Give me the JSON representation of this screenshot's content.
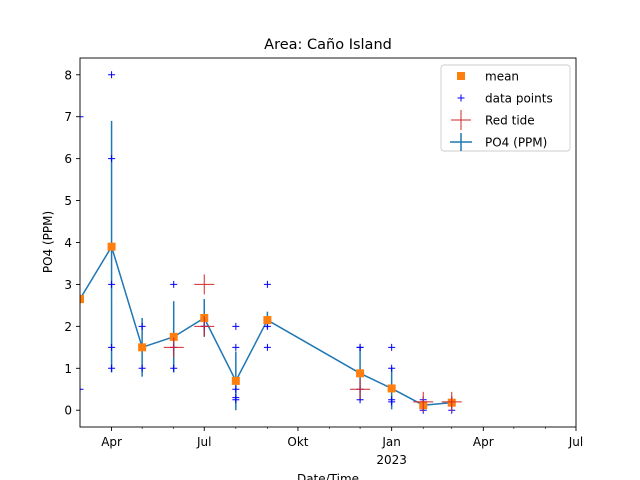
{
  "chart_data": {
    "type": "line",
    "title": "Area: Caño Island",
    "xlabel": "Date/Time",
    "ylabel": "PO4 (PPM)",
    "xlim": [
      "2022-03-01",
      "2023-07-01"
    ],
    "ylim": [
      -0.4,
      8.4
    ],
    "grid": false,
    "legend_placement": "top-right",
    "y_ticks": [
      0,
      1,
      2,
      3,
      4,
      5,
      6,
      7,
      8
    ],
    "x_major_ticks": [
      {
        "date": "2022-04-01",
        "label": "Apr",
        "sublabel": ""
      },
      {
        "date": "2022-07-01",
        "label": "Jul",
        "sublabel": ""
      },
      {
        "date": "2022-10-01",
        "label": "Okt",
        "sublabel": ""
      },
      {
        "date": "2023-01-01",
        "label": "Jan",
        "sublabel": "2023"
      },
      {
        "date": "2023-04-01",
        "label": "Apr",
        "sublabel": ""
      },
      {
        "date": "2023-07-01",
        "label": "Jul",
        "sublabel": ""
      }
    ],
    "x_minor_ticks": [
      "2022-05-01",
      "2022-06-01",
      "2022-08-01",
      "2022-09-01",
      "2022-11-01",
      "2022-12-01",
      "2023-02-01",
      "2023-03-01",
      "2023-05-01",
      "2023-06-01"
    ],
    "legend": [
      {
        "label": "mean",
        "marker": "square",
        "color": "#ff7f0e"
      },
      {
        "label": "data points",
        "marker": "plus",
        "color": "#0000ff"
      },
      {
        "label": "Red tide",
        "marker": "big-plus",
        "color": "#d62728"
      },
      {
        "label": "PO4 (PPM)",
        "marker": "errorbar-line",
        "color": "#1f77b4"
      }
    ],
    "series": [
      {
        "name": "PO4 (PPM)",
        "color": "#1f77b4",
        "points": [
          {
            "x": "2022-03-01",
            "y": 2.65,
            "err": 0.1
          },
          {
            "x": "2022-04-01",
            "y": 3.9,
            "err": 3.0
          },
          {
            "x": "2022-05-01",
            "y": 1.5,
            "err": 0.7
          },
          {
            "x": "2022-06-01",
            "y": 1.75,
            "err": 0.85
          },
          {
            "x": "2022-07-01",
            "y": 2.2,
            "err": 0.45
          },
          {
            "x": "2022-08-01",
            "y": 0.7,
            "err": 0.7
          },
          {
            "x": "2022-09-01",
            "y": 2.15,
            "err": 0.2
          },
          {
            "x": "2022-12-01",
            "y": 0.88,
            "err": 0.65
          },
          {
            "x": "2023-01-01",
            "y": 0.52,
            "err": 0.5
          },
          {
            "x": "2023-02-01",
            "y": 0.12,
            "err": 0.12
          },
          {
            "x": "2023-03-01",
            "y": 0.18,
            "err": 0.12
          }
        ]
      },
      {
        "name": "mean",
        "color": "#ff7f0e",
        "points": [
          {
            "x": "2022-03-01",
            "y": 2.65
          },
          {
            "x": "2022-04-01",
            "y": 3.9
          },
          {
            "x": "2022-05-01",
            "y": 1.5
          },
          {
            "x": "2022-06-01",
            "y": 1.75
          },
          {
            "x": "2022-07-01",
            "y": 2.2
          },
          {
            "x": "2022-08-01",
            "y": 0.7
          },
          {
            "x": "2022-09-01",
            "y": 2.15
          },
          {
            "x": "2022-12-01",
            "y": 0.88
          },
          {
            "x": "2023-01-01",
            "y": 0.52
          },
          {
            "x": "2023-02-01",
            "y": 0.12
          },
          {
            "x": "2023-03-01",
            "y": 0.18
          }
        ]
      },
      {
        "name": "data points",
        "color": "#0000ff",
        "points": [
          {
            "x": "2022-03-01",
            "y": 7.0
          },
          {
            "x": "2022-03-01",
            "y": 2.7
          },
          {
            "x": "2022-03-01",
            "y": 0.5
          },
          {
            "x": "2022-04-01",
            "y": 8.0
          },
          {
            "x": "2022-04-01",
            "y": 6.0
          },
          {
            "x": "2022-04-01",
            "y": 3.0
          },
          {
            "x": "2022-04-01",
            "y": 1.5
          },
          {
            "x": "2022-04-01",
            "y": 1.0
          },
          {
            "x": "2022-05-01",
            "y": 2.0
          },
          {
            "x": "2022-05-01",
            "y": 1.5
          },
          {
            "x": "2022-05-01",
            "y": 1.0
          },
          {
            "x": "2022-06-01",
            "y": 3.0
          },
          {
            "x": "2022-06-01",
            "y": 1.5
          },
          {
            "x": "2022-06-01",
            "y": 1.0
          },
          {
            "x": "2022-07-01",
            "y": 2.0
          },
          {
            "x": "2022-07-01",
            "y": 2.0
          },
          {
            "x": "2022-08-01",
            "y": 2.0
          },
          {
            "x": "2022-08-01",
            "y": 1.5
          },
          {
            "x": "2022-08-01",
            "y": 0.5
          },
          {
            "x": "2022-08-01",
            "y": 0.3
          },
          {
            "x": "2022-08-01",
            "y": 0.25
          },
          {
            "x": "2022-09-01",
            "y": 3.0
          },
          {
            "x": "2022-09-01",
            "y": 2.0
          },
          {
            "x": "2022-09-01",
            "y": 1.5
          },
          {
            "x": "2022-12-01",
            "y": 1.5
          },
          {
            "x": "2022-12-01",
            "y": 1.5
          },
          {
            "x": "2022-12-01",
            "y": 0.5
          },
          {
            "x": "2022-12-01",
            "y": 0.25
          },
          {
            "x": "2023-01-01",
            "y": 1.5
          },
          {
            "x": "2023-01-01",
            "y": 1.0
          },
          {
            "x": "2023-01-01",
            "y": 0.25
          },
          {
            "x": "2023-01-01",
            "y": 0.2
          },
          {
            "x": "2023-02-01",
            "y": 0.25
          },
          {
            "x": "2023-02-01",
            "y": 0.1
          },
          {
            "x": "2023-02-01",
            "y": 0.0
          },
          {
            "x": "2023-03-01",
            "y": 0.25
          },
          {
            "x": "2023-03-01",
            "y": 0.0
          }
        ]
      },
      {
        "name": "Red tide",
        "color": "#d62728",
        "points": [
          {
            "x": "2022-06-01",
            "y": 1.5
          },
          {
            "x": "2022-07-01",
            "y": 3.0
          },
          {
            "x": "2022-07-01",
            "y": 2.0
          },
          {
            "x": "2022-12-01",
            "y": 0.5
          },
          {
            "x": "2023-02-01",
            "y": 0.2
          },
          {
            "x": "2023-03-01",
            "y": 0.2
          }
        ]
      }
    ]
  }
}
